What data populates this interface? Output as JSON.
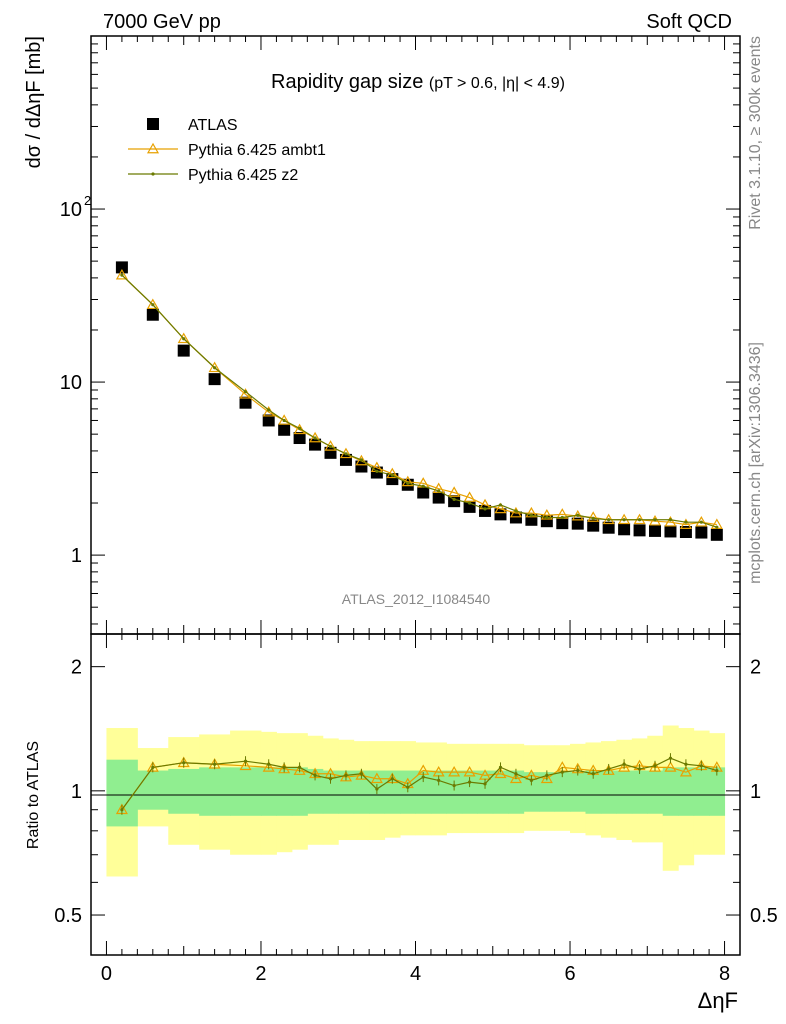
{
  "header": {
    "left": "7000 GeV pp",
    "right": "Soft QCD"
  },
  "side_labels": {
    "rivet": "Rivet 3.1.10, ≥ 300k events",
    "mcplots": "mcplots.cern.ch [arXiv:1306.3436]"
  },
  "chart_data": [
    {
      "panel": "main",
      "type": "scatter",
      "title_main": "Rapidity gap size",
      "title_cuts": "(pT > 0.6, |η| < 4.9)",
      "ylabel": "dσ / dΔηF [mb]",
      "xlabel": "ΔηF",
      "ylog": true,
      "xlim": [
        -0.2,
        8.2
      ],
      "ylim": [
        0.35,
        1000
      ],
      "ytick_labels": [
        "1",
        "10",
        "10^2"
      ],
      "ytick_values": [
        1,
        10,
        100
      ],
      "watermark": "ATLAS_2012_I1084540",
      "legend_position": "top-left",
      "x": [
        0.2,
        0.6,
        1.0,
        1.4,
        1.8,
        2.1,
        2.3,
        2.5,
        2.7,
        2.9,
        3.1,
        3.3,
        3.5,
        3.7,
        3.9,
        4.1,
        4.3,
        4.5,
        4.7,
        4.9,
        5.1,
        5.3,
        5.5,
        5.7,
        5.9,
        6.1,
        6.3,
        6.5,
        6.7,
        6.9,
        7.1,
        7.3,
        7.5,
        7.7,
        7.9
      ],
      "series": [
        {
          "name": "ATLAS",
          "marker": "square",
          "color": "#000000",
          "values": [
            46,
            24.5,
            15.2,
            10.4,
            7.6,
            6.0,
            5.3,
            4.75,
            4.35,
            3.9,
            3.55,
            3.25,
            3.0,
            2.75,
            2.55,
            2.3,
            2.15,
            2.05,
            1.9,
            1.8,
            1.72,
            1.65,
            1.6,
            1.57,
            1.53,
            1.52,
            1.48,
            1.44,
            1.41,
            1.39,
            1.38,
            1.37,
            1.36,
            1.35,
            1.31
          ]
        },
        {
          "name": "Pythia 6.425 ambt1",
          "marker": "triangle-open",
          "color": "#e8a100",
          "values": [
            41.5,
            28.0,
            17.8,
            12.1,
            8.5,
            6.7,
            6.0,
            5.3,
            4.75,
            4.25,
            3.85,
            3.5,
            3.2,
            2.95,
            2.65,
            2.6,
            2.42,
            2.3,
            2.15,
            1.95,
            1.85,
            1.75,
            1.75,
            1.7,
            1.72,
            1.68,
            1.65,
            1.6,
            1.6,
            1.6,
            1.57,
            1.55,
            1.5,
            1.55,
            1.5
          ]
        },
        {
          "name": "Pythia 6.425 z2",
          "marker": "dot",
          "color": "#6b7a00",
          "values": [
            41.5,
            28.0,
            17.8,
            12.1,
            8.8,
            6.9,
            6.0,
            5.4,
            4.75,
            4.25,
            3.85,
            3.55,
            3.05,
            2.9,
            2.6,
            2.5,
            2.35,
            2.1,
            2.0,
            1.85,
            1.95,
            1.8,
            1.7,
            1.65,
            1.65,
            1.7,
            1.63,
            1.6,
            1.6,
            1.6,
            1.6,
            1.6,
            1.55,
            1.55,
            1.45
          ]
        }
      ]
    },
    {
      "panel": "ratio",
      "type": "line",
      "ylabel": "Ratio to ATLAS",
      "xlabel": "ΔηF",
      "ylog": true,
      "xlim": [
        -0.2,
        8.2
      ],
      "ylim": [
        0.4,
        2.4
      ],
      "ytick_labels": [
        "0.5",
        "1",
        "2"
      ],
      "ytick_values": [
        0.5,
        1,
        2
      ],
      "xtick_labels": [
        "0",
        "2",
        "4",
        "6",
        "8"
      ],
      "xtick_values": [
        0,
        2,
        4,
        6,
        8
      ],
      "x": [
        0.2,
        0.6,
        1.0,
        1.4,
        1.8,
        2.1,
        2.3,
        2.5,
        2.7,
        2.9,
        3.1,
        3.3,
        3.5,
        3.7,
        3.9,
        4.1,
        4.3,
        4.5,
        4.7,
        4.9,
        5.1,
        5.3,
        5.5,
        5.7,
        5.9,
        6.1,
        6.3,
        6.5,
        6.7,
        6.9,
        7.1,
        7.3,
        7.5,
        7.7,
        7.9
      ],
      "bands": {
        "edges": [
          0.0,
          0.4,
          0.8,
          1.2,
          1.6,
          2.0,
          2.2,
          2.4,
          2.6,
          2.8,
          3.0,
          3.2,
          3.4,
          3.6,
          3.8,
          4.0,
          4.2,
          4.4,
          4.6,
          4.8,
          5.0,
          5.2,
          5.4,
          5.6,
          5.8,
          6.0,
          6.2,
          6.4,
          6.6,
          6.8,
          7.0,
          7.2,
          7.4,
          7.6,
          7.8,
          8.0
        ],
        "green_color": "#90ee90",
        "yellow_color": "#ffff99",
        "green_lo": [
          0.82,
          0.9,
          0.88,
          0.87,
          0.87,
          0.87,
          0.87,
          0.87,
          0.88,
          0.88,
          0.88,
          0.88,
          0.88,
          0.88,
          0.88,
          0.88,
          0.88,
          0.88,
          0.88,
          0.88,
          0.88,
          0.88,
          0.89,
          0.89,
          0.89,
          0.89,
          0.88,
          0.88,
          0.88,
          0.88,
          0.88,
          0.87,
          0.87,
          0.87,
          0.87
        ],
        "green_hi": [
          1.19,
          1.12,
          1.13,
          1.14,
          1.14,
          1.14,
          1.14,
          1.14,
          1.13,
          1.12,
          1.12,
          1.12,
          1.12,
          1.12,
          1.12,
          1.12,
          1.12,
          1.12,
          1.12,
          1.12,
          1.12,
          1.12,
          1.11,
          1.11,
          1.11,
          1.11,
          1.12,
          1.12,
          1.12,
          1.12,
          1.12,
          1.14,
          1.14,
          1.14,
          1.14
        ],
        "yellow_lo": [
          0.62,
          0.82,
          0.74,
          0.72,
          0.7,
          0.7,
          0.71,
          0.72,
          0.74,
          0.74,
          0.76,
          0.76,
          0.76,
          0.77,
          0.78,
          0.78,
          0.78,
          0.79,
          0.79,
          0.79,
          0.79,
          0.79,
          0.8,
          0.8,
          0.8,
          0.79,
          0.78,
          0.77,
          0.76,
          0.75,
          0.75,
          0.64,
          0.66,
          0.7,
          0.7
        ],
        "yellow_hi": [
          1.42,
          1.27,
          1.35,
          1.37,
          1.4,
          1.39,
          1.38,
          1.38,
          1.36,
          1.34,
          1.33,
          1.32,
          1.32,
          1.32,
          1.32,
          1.31,
          1.31,
          1.3,
          1.3,
          1.3,
          1.3,
          1.3,
          1.29,
          1.29,
          1.29,
          1.3,
          1.31,
          1.32,
          1.33,
          1.34,
          1.36,
          1.44,
          1.42,
          1.4,
          1.38
        ]
      },
      "series": [
        {
          "name": "Pythia 6.425 ambt1",
          "marker": "triangle-open",
          "color": "#e8a100",
          "values": [
            0.9,
            1.14,
            1.17,
            1.16,
            1.15,
            1.14,
            1.13,
            1.12,
            1.1,
            1.1,
            1.08,
            1.09,
            1.07,
            1.07,
            1.04,
            1.12,
            1.11,
            1.11,
            1.11,
            1.09,
            1.1,
            1.07,
            1.09,
            1.07,
            1.14,
            1.13,
            1.12,
            1.12,
            1.14,
            1.15,
            1.14,
            1.14,
            1.11,
            1.15,
            1.14
          ]
        },
        {
          "name": "Pythia 6.425 z2",
          "marker": "dot",
          "color": "#6b7a00",
          "values": [
            0.9,
            1.14,
            1.17,
            1.16,
            1.18,
            1.16,
            1.14,
            1.14,
            1.09,
            1.07,
            1.09,
            1.1,
            1.01,
            1.07,
            1.02,
            1.08,
            1.06,
            1.03,
            1.05,
            1.04,
            1.14,
            1.1,
            1.06,
            1.09,
            1.11,
            1.12,
            1.1,
            1.13,
            1.16,
            1.13,
            1.15,
            1.2,
            1.16,
            1.15,
            1.12
          ]
        }
      ]
    }
  ]
}
